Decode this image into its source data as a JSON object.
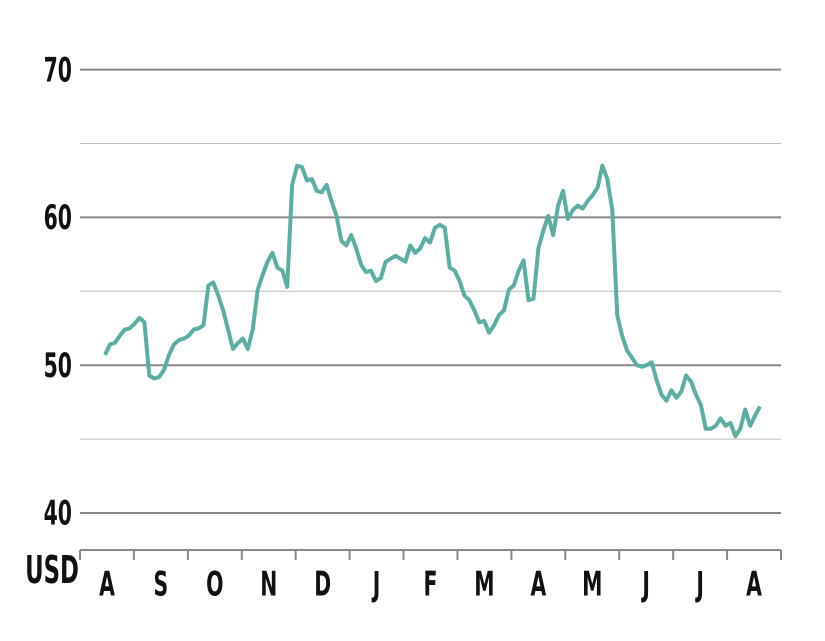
{
  "chart_data": {
    "type": "line",
    "y_unit_label": "USD",
    "x_labels": [
      "A",
      "S",
      "O",
      "N",
      "D",
      "J",
      "F",
      "M",
      "A",
      "M",
      "J",
      "J",
      "A"
    ],
    "ylim": [
      37.5,
      72
    ],
    "yticks": [
      40,
      50,
      60,
      70
    ],
    "minor_yticks": [
      45,
      55,
      65
    ],
    "grid": true,
    "series": [
      {
        "color": "#5aaea4",
        "values": [
          50.7,
          51.4,
          51.5,
          52.0,
          52.4,
          52.5,
          52.8,
          53.2,
          52.9,
          49.3,
          49.1,
          49.2,
          49.7,
          50.7,
          51.4,
          51.7,
          51.8,
          52.0,
          52.4,
          52.5,
          52.7,
          55.4,
          55.6,
          54.7,
          53.7,
          52.4,
          51.1,
          51.5,
          51.8,
          51.1,
          52.4,
          55.1,
          56.1,
          57.0,
          57.6,
          56.6,
          56.4,
          55.3,
          62.2,
          63.5,
          63.4,
          62.5,
          62.6,
          61.8,
          61.7,
          62.2,
          61.1,
          60.1,
          58.4,
          58.1,
          58.8,
          57.9,
          56.8,
          56.3,
          56.4,
          55.7,
          55.9,
          57.0,
          57.2,
          57.4,
          57.2,
          57.0,
          58.1,
          57.6,
          57.9,
          58.6,
          58.3,
          59.3,
          59.5,
          59.3,
          56.6,
          56.4,
          55.7,
          54.7,
          54.4,
          53.7,
          52.9,
          53.0,
          52.2,
          52.7,
          53.4,
          53.7,
          55.1,
          55.4,
          56.4,
          57.1,
          54.4,
          54.5,
          57.9,
          59.1,
          60.1,
          58.8,
          60.8,
          61.8,
          59.9,
          60.5,
          60.8,
          60.6,
          61.1,
          61.5,
          62.0,
          63.5,
          62.6,
          60.5,
          53.4,
          52.0,
          51.0,
          50.5,
          50.0,
          49.9,
          50.0,
          50.2,
          49.0,
          48.0,
          47.6,
          48.3,
          47.8,
          48.2,
          49.3,
          48.9,
          48.0,
          47.3,
          45.7,
          45.7,
          45.9,
          46.4,
          45.9,
          46.1,
          45.2,
          45.7,
          47.0,
          45.9,
          46.6,
          47.2
        ]
      }
    ]
  }
}
